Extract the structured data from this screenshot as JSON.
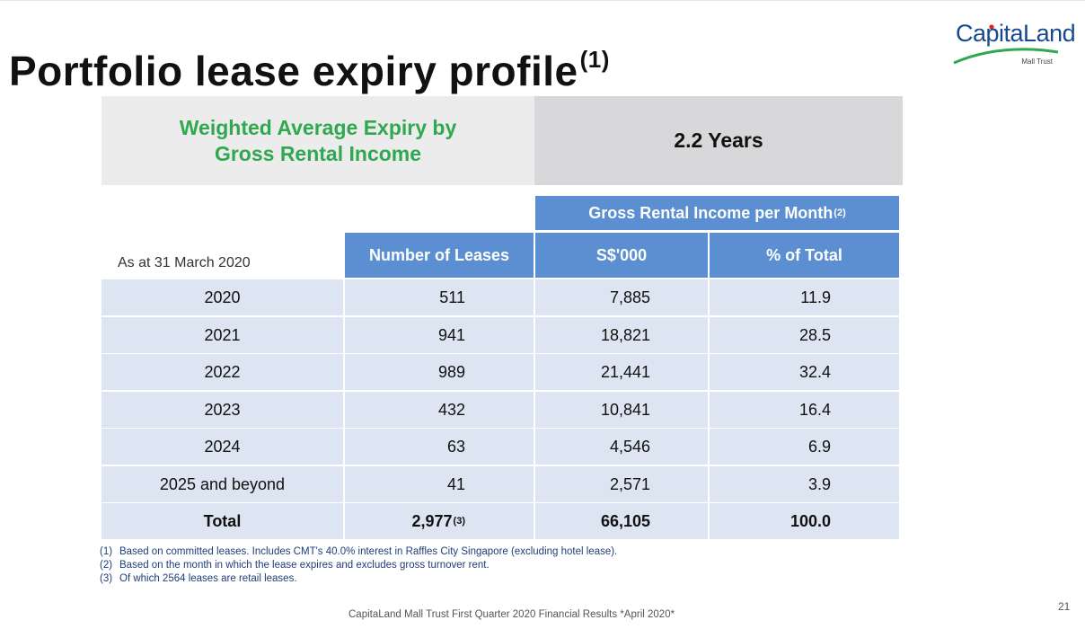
{
  "page": {
    "title": "Portfolio lease expiry profile",
    "title_sup": "(1)",
    "logo": {
      "name": "CapitaLand",
      "sub": "Mall Trust",
      "brand_blue": "#174a8c",
      "brand_green": "#2fa84f",
      "brand_red": "#d7262b"
    }
  },
  "wale": {
    "label_line1": "Weighted Average Expiry by",
    "label_line2": "Gross Rental Income",
    "value": "2.2 Years"
  },
  "table": {
    "as_at": "As at 31 March 2020",
    "group_header": "Gross Rental Income per Month",
    "group_header_sup": "(2)",
    "col_leases": "Number of Leases",
    "col_sgd": "S$'000",
    "col_pct": "% of Total",
    "header_color": "#5b8fd2",
    "row_color": "#dce5f1",
    "rows": [
      {
        "year": "2020",
        "leases": "511",
        "sgd": "7,885",
        "pct": "11.9"
      },
      {
        "year": "2021",
        "leases": "941",
        "sgd": "18,821",
        "pct": "28.5"
      },
      {
        "year": "2022",
        "leases": "989",
        "sgd": "21,441",
        "pct": "32.4"
      },
      {
        "year": "2023",
        "leases": "432",
        "sgd": "10,841",
        "pct": "16.4"
      },
      {
        "year": "2024",
        "leases": "63",
        "sgd": "4,546",
        "pct": "6.9"
      },
      {
        "year": "2025 and beyond",
        "leases": "41",
        "sgd": "2,571",
        "pct": "3.9"
      }
    ],
    "total": {
      "label": "Total",
      "leases": "2,977",
      "leases_sup": "(3)",
      "sgd": "66,105",
      "pct": "100.0"
    }
  },
  "notes": [
    {
      "num": "(1)",
      "text": "Based on committed leases. Includes CMT's 40.0% interest in Raffles City Singapore (excluding hotel lease)."
    },
    {
      "num": "(2)",
      "text": "Based on the month in which the lease expires and excludes gross turnover rent."
    },
    {
      "num": "(3)",
      "text": "Of which 2564 leases are retail leases."
    }
  ],
  "footer": "CapitaLand Mall Trust First Quarter 2020 Financial Results *April 2020*",
  "page_number": "21"
}
